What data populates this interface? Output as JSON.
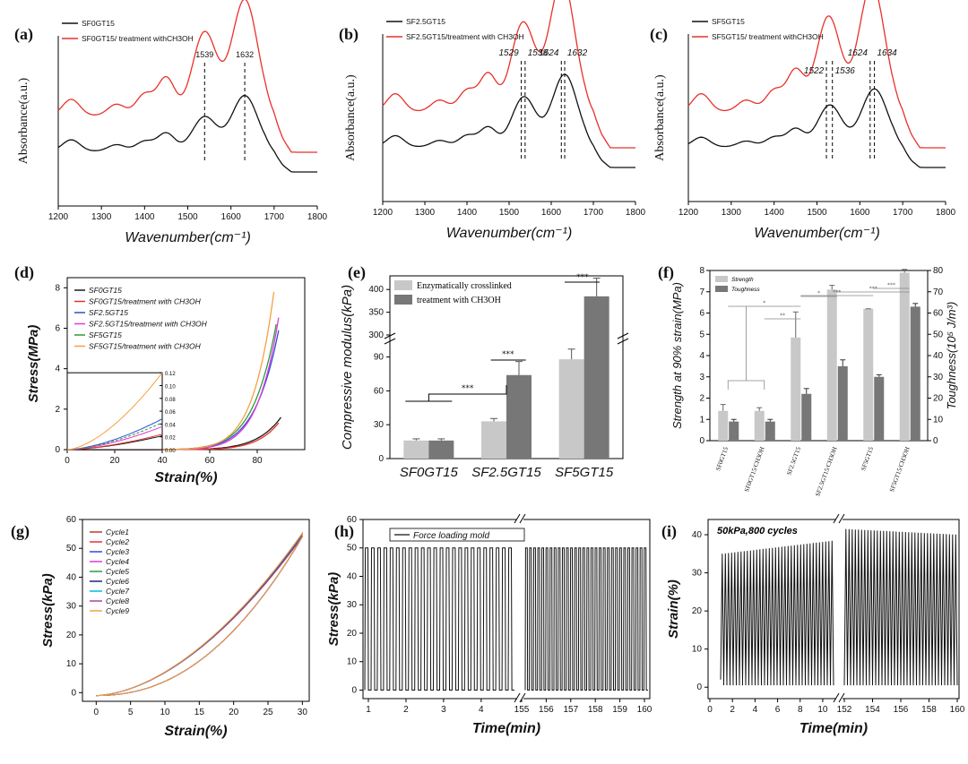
{
  "panel_labels": [
    "(a)",
    "(b)",
    "(c)",
    "(d)",
    "(e)",
    "(f)",
    "(g)",
    "(h)",
    "(i)"
  ],
  "chart_data": [
    {
      "id": "a",
      "type": "line",
      "title": "",
      "xlabel": "Wavenumber(cm⁻¹)",
      "ylabel": "Absorbance(a.u.)",
      "xlim": [
        1200,
        1800
      ],
      "xticks": [
        "1200",
        "1300",
        "1400",
        "1500",
        "1600",
        "1700",
        "1800"
      ],
      "legend": [
        "SF0GT15",
        "SF0GT15/ treatment withCH3OH"
      ],
      "colors": [
        "#111111",
        "#e8312a"
      ],
      "annotations": [
        "1539",
        "1632"
      ],
      "annotation_x": [
        1539,
        1632
      ],
      "series": [
        {
          "name": "SF0GT15",
          "peaks": [
            [
              1230,
              0.35
            ],
            [
              1335,
              0.2
            ],
            [
              1400,
              0.3
            ],
            [
              1450,
              0.55
            ],
            [
              1539,
              1.05
            ],
            [
              1632,
              1.7
            ]
          ]
        },
        {
          "name": "SF0GT15/ treatment withCH3OH",
          "peaks": [
            [
              1230,
              0.5
            ],
            [
              1335,
              0.35
            ],
            [
              1400,
              0.65
            ],
            [
              1450,
              1.15
            ],
            [
              1539,
              2.55
            ],
            [
              1632,
              3.55
            ]
          ]
        }
      ]
    },
    {
      "id": "b",
      "type": "line",
      "xlabel": "Wavenumber(cm⁻¹)",
      "ylabel": "Absorbance(a.u.)",
      "xlim": [
        1200,
        1800
      ],
      "xticks": [
        "1200",
        "1300",
        "1400",
        "1500",
        "1600",
        "1700",
        "1800"
      ],
      "legend": [
        "SF2.5GT15",
        "SF2.5GT15/treatment with CH3OH"
      ],
      "colors": [
        "#111111",
        "#e8312a"
      ],
      "annotations": [
        "1529",
        "1538",
        "1624",
        "1632"
      ],
      "annotation_x": [
        1529,
        1538,
        1624,
        1632
      ],
      "series": [
        {
          "name": "SF2.5GT15",
          "peaks": [
            [
              1230,
              0.35
            ],
            [
              1335,
              0.2
            ],
            [
              1400,
              0.35
            ],
            [
              1450,
              0.6
            ],
            [
              1535,
              1.55
            ],
            [
              1632,
              2.25
            ]
          ]
        },
        {
          "name": "SF2.5GT15/treatment with CH3OH",
          "peaks": [
            [
              1230,
              0.55
            ],
            [
              1335,
              0.35
            ],
            [
              1400,
              0.65
            ],
            [
              1450,
              1.15
            ],
            [
              1533,
              2.75
            ],
            [
              1626,
              4.1
            ]
          ]
        }
      ]
    },
    {
      "id": "c",
      "type": "line",
      "xlabel": "Wavenumber(cm⁻¹)",
      "ylabel": "Absorbance(a.u.)",
      "xlim": [
        1200,
        1800
      ],
      "xticks": [
        "1200",
        "1300",
        "1400",
        "1500",
        "1600",
        "1700",
        "1800"
      ],
      "legend": [
        "SF5GT15",
        "SF5GT15/ treatment withCH3OH"
      ],
      "colors": [
        "#111111",
        "#e8312a"
      ],
      "annotations": [
        "1522",
        "1536",
        "1624",
        "1634"
      ],
      "annotation_x": [
        1522,
        1536,
        1624,
        1634
      ],
      "series": [
        {
          "name": "SF5GT15",
          "peaks": [
            [
              1230,
              0.3
            ],
            [
              1335,
              0.18
            ],
            [
              1400,
              0.3
            ],
            [
              1450,
              0.55
            ],
            [
              1530,
              1.3
            ],
            [
              1634,
              1.8
            ]
          ]
        },
        {
          "name": "SF5GT15/ treatment withCH3OH",
          "peaks": [
            [
              1230,
              0.55
            ],
            [
              1335,
              0.35
            ],
            [
              1400,
              0.65
            ],
            [
              1450,
              1.25
            ],
            [
              1527,
              2.95
            ],
            [
              1628,
              3.95
            ]
          ]
        }
      ]
    },
    {
      "id": "d",
      "type": "line",
      "xlabel": "Strain(%)",
      "ylabel": "Stress(MPa)",
      "xlim": [
        0,
        100
      ],
      "ylim": [
        0,
        8.5
      ],
      "xticks": [
        "0",
        "20",
        "40",
        "60",
        "80"
      ],
      "yticks": [
        "0",
        "2",
        "4",
        "6",
        "8"
      ],
      "inset_yticks": [
        "0.00",
        "0.02",
        "0.04",
        "0.06",
        "0.08",
        "0.10",
        "0.12"
      ],
      "series": [
        {
          "name": "SF0GT15",
          "color": "#1a1a1a",
          "end_strain": 90,
          "max_stress": 1.6
        },
        {
          "name": "SF0GT15/treatment with CH3OH",
          "color": "#e8312a",
          "end_strain": 89.5,
          "max_stress": 1.4
        },
        {
          "name": "SF2.5GT15",
          "color": "#2b4fd6",
          "end_strain": 89,
          "max_stress": 5.9
        },
        {
          "name": "SF2.5GT15/treatment with CH3OH",
          "color": "#e03ad8",
          "end_strain": 89.5,
          "max_stress": 6.9
        },
        {
          "name": "SF5GT15",
          "color": "#2e9a3c",
          "end_strain": 88,
          "max_stress": 6.2
        },
        {
          "name": "SF5GT15/treatment with CH3OH",
          "color": "#f5a040",
          "end_strain": 87,
          "max_stress": 7.8
        }
      ]
    },
    {
      "id": "e",
      "type": "bar",
      "ylabel": "Compressive modulus(kPa)",
      "categories": [
        "SF0GT15",
        "SF2.5GT15",
        "SF5GT15"
      ],
      "legend": [
        "Enzymatically crosslinked",
        "treatment with CH3OH"
      ],
      "colors": [
        "#c8c8c8",
        "#777777"
      ],
      "yticks_lower": [
        "0",
        "30",
        "60",
        "90"
      ],
      "yticks_upper": [
        "300",
        "350",
        "400"
      ],
      "significance": [
        "***",
        "***",
        "***"
      ],
      "series": [
        {
          "name": "Enzymatically crosslinked",
          "values": [
            16,
            33,
            88
          ],
          "errors": [
            1.5,
            2.5,
            9
          ]
        },
        {
          "name": "treatment with CH3OH",
          "values": [
            16,
            74,
            385
          ],
          "errors": [
            1.5,
            12,
            40
          ]
        }
      ]
    },
    {
      "id": "f",
      "type": "bar",
      "ylabel": "Strength at 90% strain(MPa)",
      "ylabel_right": "Toughness(10⁵ J/m³)",
      "categories": [
        "SF0GT15",
        "SF0GT15/CH3OH",
        "SF2.5GT15",
        "SF2.5GT15/CH3OH",
        "SF5GT15",
        "SF5GT15/CH3OH"
      ],
      "legend": [
        "Strength",
        "Toughness"
      ],
      "colors": [
        "#c8c8c8",
        "#777777"
      ],
      "ylim_left": [
        0,
        8
      ],
      "ylim_right": [
        0,
        80
      ],
      "yticks_left": [
        "0",
        "1",
        "2",
        "3",
        "4",
        "5",
        "6",
        "7",
        "8"
      ],
      "yticks_right": [
        "0",
        "10",
        "20",
        "30",
        "40",
        "50",
        "60",
        "70",
        "80"
      ],
      "significance": [
        "*",
        "**",
        "*",
        "***",
        "***",
        "***"
      ],
      "series": [
        {
          "name": "Strength",
          "values": [
            1.4,
            1.4,
            4.85,
            7.1,
            6.2,
            7.9
          ],
          "errors": [
            0.3,
            0.15,
            1.2,
            0.2,
            0.0,
            0.15
          ]
        },
        {
          "name": "Toughness",
          "values": [
            9,
            9,
            22,
            35,
            30,
            63
          ],
          "errors": [
            1,
            1,
            2.5,
            3,
            1,
            1.5
          ]
        }
      ]
    },
    {
      "id": "g",
      "type": "line",
      "xlabel": "Strain(%)",
      "ylabel": "Stress(kPa)",
      "xlim": [
        -2,
        31
      ],
      "ylim": [
        -3,
        60
      ],
      "xticks": [
        "0",
        "5",
        "10",
        "15",
        "20",
        "25",
        "30"
      ],
      "yticks": [
        "0",
        "10",
        "20",
        "30",
        "40",
        "50",
        "60"
      ],
      "series": [
        {
          "name": "Cycle1",
          "color": "#c0392b"
        },
        {
          "name": "Cycle2",
          "color": "#e8312a"
        },
        {
          "name": "Cycle3",
          "color": "#2b4fd6"
        },
        {
          "name": "Cycle4",
          "color": "#e03ad8"
        },
        {
          "name": "Cycle5",
          "color": "#2e9a3c"
        },
        {
          "name": "Cycle6",
          "color": "#1a237e"
        },
        {
          "name": "Cycle7",
          "color": "#00bcd4"
        },
        {
          "name": "Cycle8",
          "color": "#b03ab0"
        },
        {
          "name": "Cycle9",
          "color": "#f5a040"
        }
      ],
      "max_stress": 54,
      "max_strain": 30
    },
    {
      "id": "h",
      "type": "line",
      "xlabel": "Time(min)",
      "ylabel": "Stress(kPa)",
      "ylim": [
        -3,
        60
      ],
      "xticks_left": [
        "1",
        "2",
        "3",
        "4"
      ],
      "xticks_right": [
        "155",
        "156",
        "157",
        "158",
        "159",
        "160"
      ],
      "yticks": [
        "0",
        "10",
        "20",
        "30",
        "40",
        "50",
        "60"
      ],
      "legend": [
        "Force loading mold"
      ],
      "series": [
        {
          "name": "Force loading mold",
          "max_stress": 50,
          "min_stress": 0
        }
      ]
    },
    {
      "id": "i",
      "type": "line",
      "xlabel": "Time(min)",
      "ylabel": "Strain(%)",
      "ylim": [
        -3,
        44
      ],
      "xticks_left": [
        "0",
        "2",
        "4",
        "6",
        "8",
        "10"
      ],
      "xticks_right": [
        "152",
        "154",
        "156",
        "158",
        "160"
      ],
      "yticks": [
        "0",
        "10",
        "20",
        "30",
        "40"
      ],
      "annotation": "50kPa,800 cycles",
      "series": [
        {
          "name": "Strain",
          "min_strain": 0.5,
          "max_strain_start": 35,
          "max_strain_end": 40
        }
      ]
    }
  ]
}
